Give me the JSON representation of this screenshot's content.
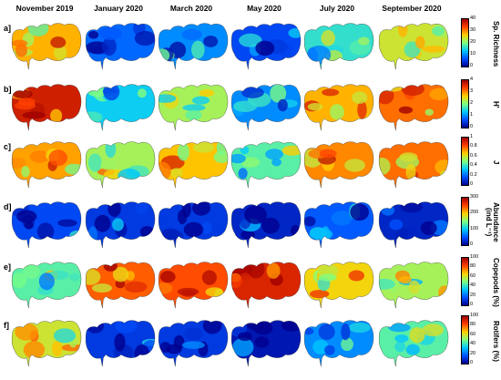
{
  "columns": [
    "November 2019",
    "January 2020",
    "March 2020",
    "May 2020",
    "July 2020",
    "September 2020"
  ],
  "rows": [
    {
      "label": "a]",
      "variable": "Sp. Richness",
      "ticks": [
        "40",
        "30",
        "20",
        "10",
        "0"
      ],
      "levels": [
        0.7,
        0.2,
        0.25,
        0.15,
        0.4,
        0.6
      ]
    },
    {
      "label": "b]",
      "variable": "H'",
      "ticks": [
        "4",
        "3",
        "2",
        "1",
        "0"
      ],
      "levels": [
        0.92,
        0.35,
        0.55,
        0.25,
        0.7,
        0.78
      ]
    },
    {
      "label": "c]",
      "variable": "J",
      "ticks": [
        "1",
        "0.8",
        "0.6",
        "0.4",
        "0.2",
        "0"
      ],
      "levels": [
        0.72,
        0.55,
        0.68,
        0.45,
        0.75,
        0.78
      ]
    },
    {
      "label": "d]",
      "variable": "Abundance (ind L⁻¹)",
      "ticks": [
        "300",
        "200",
        "100",
        "0"
      ],
      "levels": [
        0.15,
        0.12,
        0.12,
        0.08,
        0.18,
        0.08
      ]
    },
    {
      "label": "e]",
      "variable": "Copepods (%)",
      "ticks": [
        "100",
        "80",
        "60",
        "40",
        "20",
        "0"
      ],
      "levels": [
        0.45,
        0.8,
        0.82,
        0.9,
        0.65,
        0.55
      ]
    },
    {
      "label": "f]",
      "variable": "Rotifers (%)",
      "ticks": [
        "100",
        "80",
        "60",
        "40",
        "20",
        "0"
      ],
      "levels": [
        0.6,
        0.12,
        0.12,
        0.05,
        0.25,
        0.45
      ]
    }
  ],
  "colormap": [
    "#00008f",
    "#0050ff",
    "#00c8ff",
    "#80ff80",
    "#ffd000",
    "#ff4000",
    "#a00000"
  ]
}
